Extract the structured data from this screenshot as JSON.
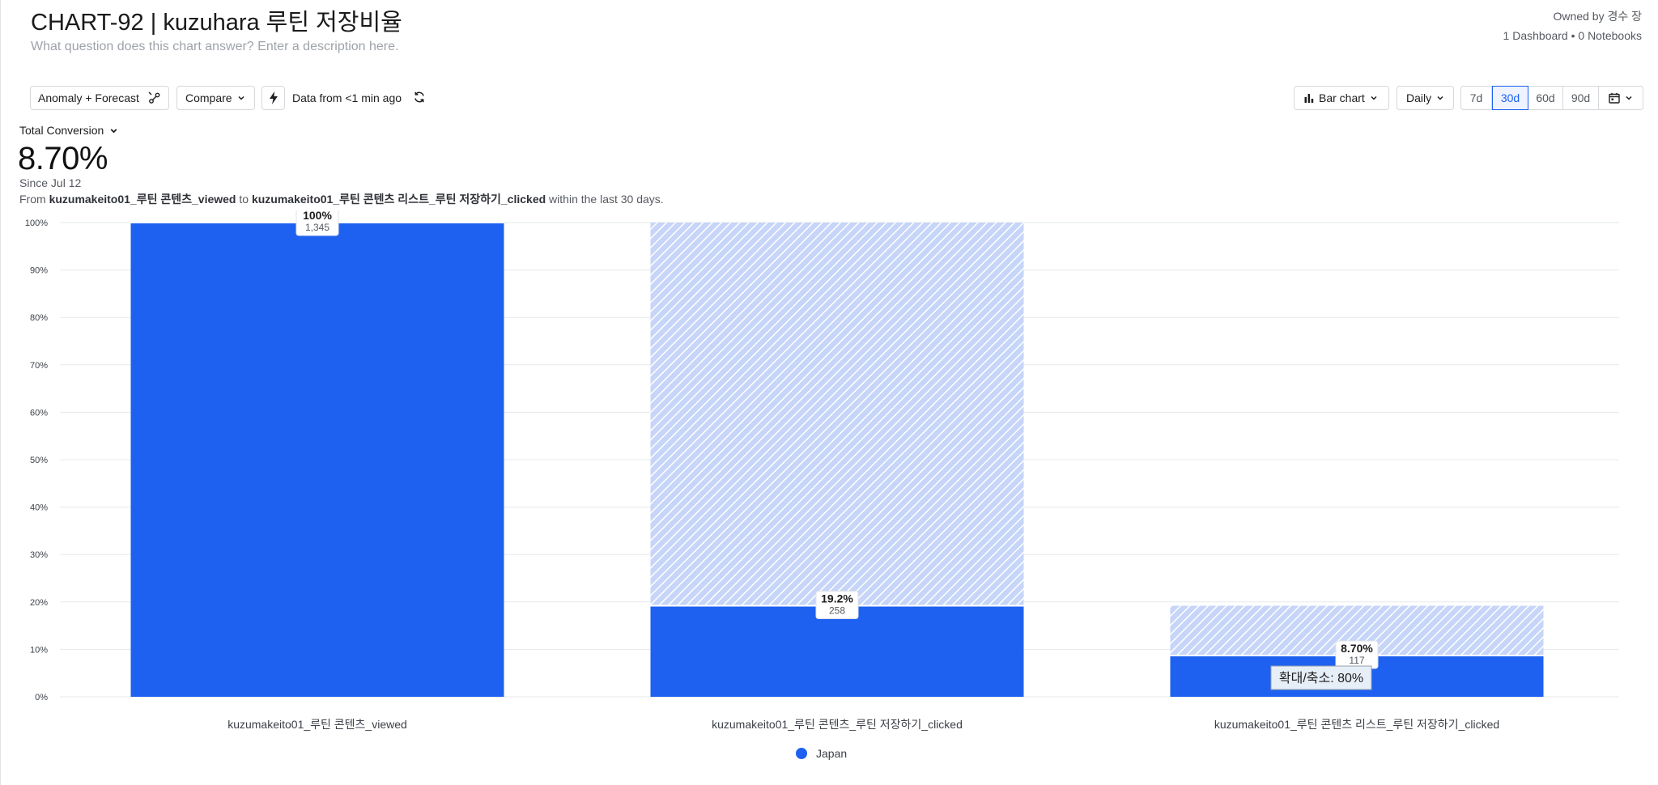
{
  "header": {
    "title": "CHART-92 | kuzuhara 루틴 저장비율",
    "description_placeholder": "What question does this chart answer? Enter a description here.",
    "owner": "Owned by 경수 장",
    "usage": "1 Dashboard • 0 Notebooks"
  },
  "toolbar": {
    "anomaly_label": "Anomaly + Forecast",
    "compare_label": "Compare",
    "data_freshness": "Data from <1 min ago",
    "chart_type_label": "Bar chart",
    "interval_label": "Daily",
    "ranges": [
      "7d",
      "30d",
      "60d",
      "90d"
    ],
    "active_range": "30d"
  },
  "metric": {
    "label": "Total Conversion",
    "value": "8.70%",
    "since": "Since Jul 12",
    "from_prefix": "From ",
    "from_event": "kuzumakeito01_루틴 콘텐츠_viewed",
    "to_word": " to ",
    "to_event": "kuzumakeito01_루틴 콘텐츠 리스트_루틴 저장하기_clicked",
    "suffix": " within the last 30 days."
  },
  "tooltip_zoom": "확대/축소: 80%",
  "colors": {
    "accent": "#1e61f0",
    "dropoff": "#c6d5f8",
    "grid": "#e6e8eb"
  },
  "chart_data": {
    "type": "bar",
    "categories": [
      "kuzumakeito01_루틴 콘텐츠_viewed",
      "kuzumakeito01_루틴 콘텐츠_루틴 저장하기_clicked",
      "kuzumakeito01_루틴 콘텐츠 리스트_루틴 저장하기_clicked"
    ],
    "series": [
      {
        "name": "Japan",
        "values": [
          100,
          19.2,
          8.7
        ],
        "labels": [
          "100%",
          "19.2%",
          "8.70%"
        ],
        "counts": [
          "1,345",
          "258",
          "117"
        ],
        "previous_step": [
          100,
          100,
          19.2
        ]
      }
    ],
    "ylim": [
      0,
      100
    ],
    "yticks": [
      "0%",
      "10%",
      "20%",
      "30%",
      "40%",
      "50%",
      "60%",
      "70%",
      "80%",
      "90%",
      "100%"
    ],
    "grid": true,
    "legend": "bottom-center"
  }
}
